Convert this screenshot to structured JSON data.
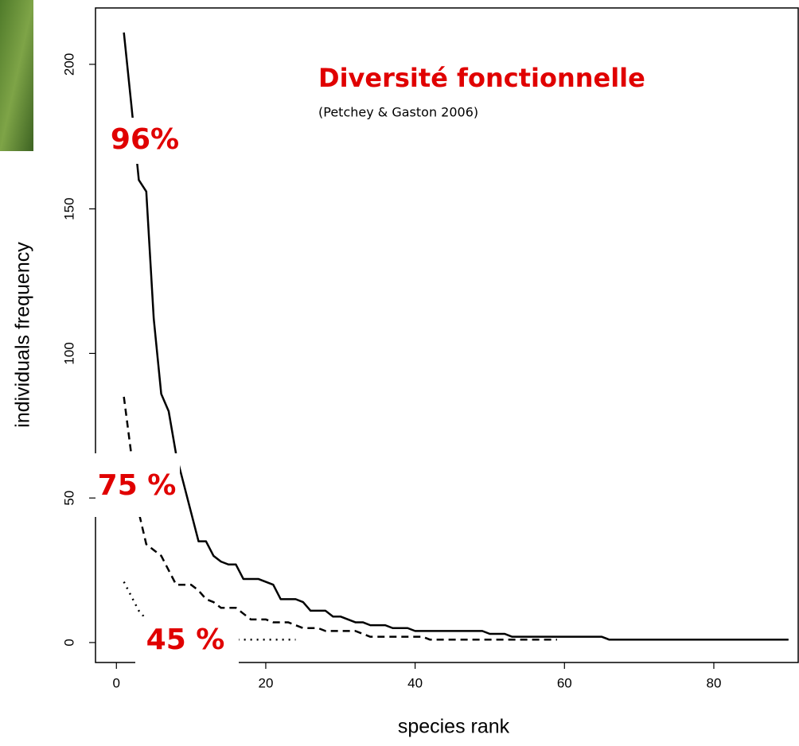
{
  "chart_data": {
    "type": "line",
    "title": "Diversité fonctionnelle",
    "subtitle": "(Petchey & Gaston 2006)",
    "x_label": "species rank",
    "y_label": "individuals frequency",
    "annotations": [
      "96%",
      "75 %",
      "45 %"
    ],
    "xlim": [
      -2.8,
      91.3
    ],
    "ylim": [
      -6.9,
      219.5
    ],
    "xticks": [
      0,
      20,
      40,
      60,
      80
    ],
    "yticks": [
      0,
      50,
      100,
      150,
      200
    ],
    "series": [
      {
        "color": "#000000",
        "dash": "solid",
        "x": [
          1,
          2,
          3,
          4,
          5,
          6,
          7,
          8,
          9,
          10,
          11,
          12,
          13,
          14,
          15,
          16,
          17,
          18,
          19,
          20,
          21,
          22,
          23,
          24,
          25,
          26,
          27,
          28,
          29,
          30,
          31,
          32,
          33,
          34,
          35,
          36,
          37,
          38,
          39,
          40,
          41,
          42,
          43,
          44,
          45,
          46,
          47,
          48,
          49,
          50,
          51,
          52,
          53,
          54,
          55,
          56,
          57,
          58,
          59,
          60,
          61,
          62,
          63,
          64,
          65,
          66,
          67,
          68,
          69,
          70,
          71,
          72,
          73,
          74,
          75,
          76,
          77,
          78,
          79,
          80,
          81,
          82,
          83,
          84,
          85,
          86,
          87,
          88,
          89,
          90
        ],
        "values": [
          211,
          186,
          160,
          156,
          112,
          86,
          80,
          65,
          55,
          45,
          35,
          35,
          30,
          28,
          27,
          27,
          22,
          22,
          22,
          21,
          20,
          15,
          15,
          15,
          14,
          11,
          11,
          11,
          9,
          9,
          8,
          7,
          7,
          6,
          6,
          6,
          5,
          5,
          5,
          4,
          4,
          4,
          4,
          4,
          4,
          4,
          4,
          4,
          4,
          3,
          3,
          3,
          2,
          2,
          2,
          2,
          2,
          2,
          2,
          2,
          2,
          2,
          2,
          2,
          2,
          1,
          1,
          1,
          1,
          1,
          1,
          1,
          1,
          1,
          1,
          1,
          1,
          1,
          1,
          1,
          1,
          1,
          1,
          1,
          1,
          1,
          1,
          1,
          1,
          1
        ]
      },
      {
        "color": "#000000",
        "dash": "dashed",
        "x": [
          1,
          2,
          3,
          4,
          5,
          6,
          7,
          8,
          9,
          10,
          11,
          12,
          13,
          14,
          15,
          16,
          17,
          18,
          19,
          20,
          21,
          22,
          23,
          24,
          25,
          26,
          27,
          28,
          29,
          30,
          31,
          32,
          33,
          34,
          35,
          36,
          37,
          38,
          39,
          40,
          41,
          42,
          43,
          44,
          45,
          46,
          47,
          48,
          49,
          50,
          51,
          52,
          53,
          54,
          55,
          56,
          57,
          58,
          59
        ],
        "values": [
          85,
          65,
          45,
          34,
          32,
          30,
          25,
          20,
          20,
          20,
          18,
          15,
          14,
          12,
          12,
          12,
          10,
          8,
          8,
          8,
          7,
          7,
          7,
          6,
          5,
          5,
          5,
          4,
          4,
          4,
          4,
          4,
          3,
          2,
          2,
          2,
          2,
          2,
          2,
          2,
          2,
          1,
          1,
          1,
          1,
          1,
          1,
          1,
          1,
          1,
          1,
          1,
          1,
          1,
          1,
          1,
          1,
          1,
          1
        ]
      },
      {
        "color": "#000000",
        "dash": "dotted",
        "x": [
          1,
          2,
          3,
          4,
          5,
          6,
          7,
          8,
          9,
          10,
          11,
          12,
          13,
          14,
          15,
          16,
          17,
          18,
          19,
          20,
          21,
          22,
          23,
          24
        ],
        "values": [
          21,
          16,
          11,
          8,
          6,
          5,
          4,
          3,
          3,
          2,
          2,
          2,
          2,
          2,
          2,
          1,
          1,
          1,
          1,
          1,
          1,
          1,
          1,
          1
        ]
      }
    ]
  }
}
